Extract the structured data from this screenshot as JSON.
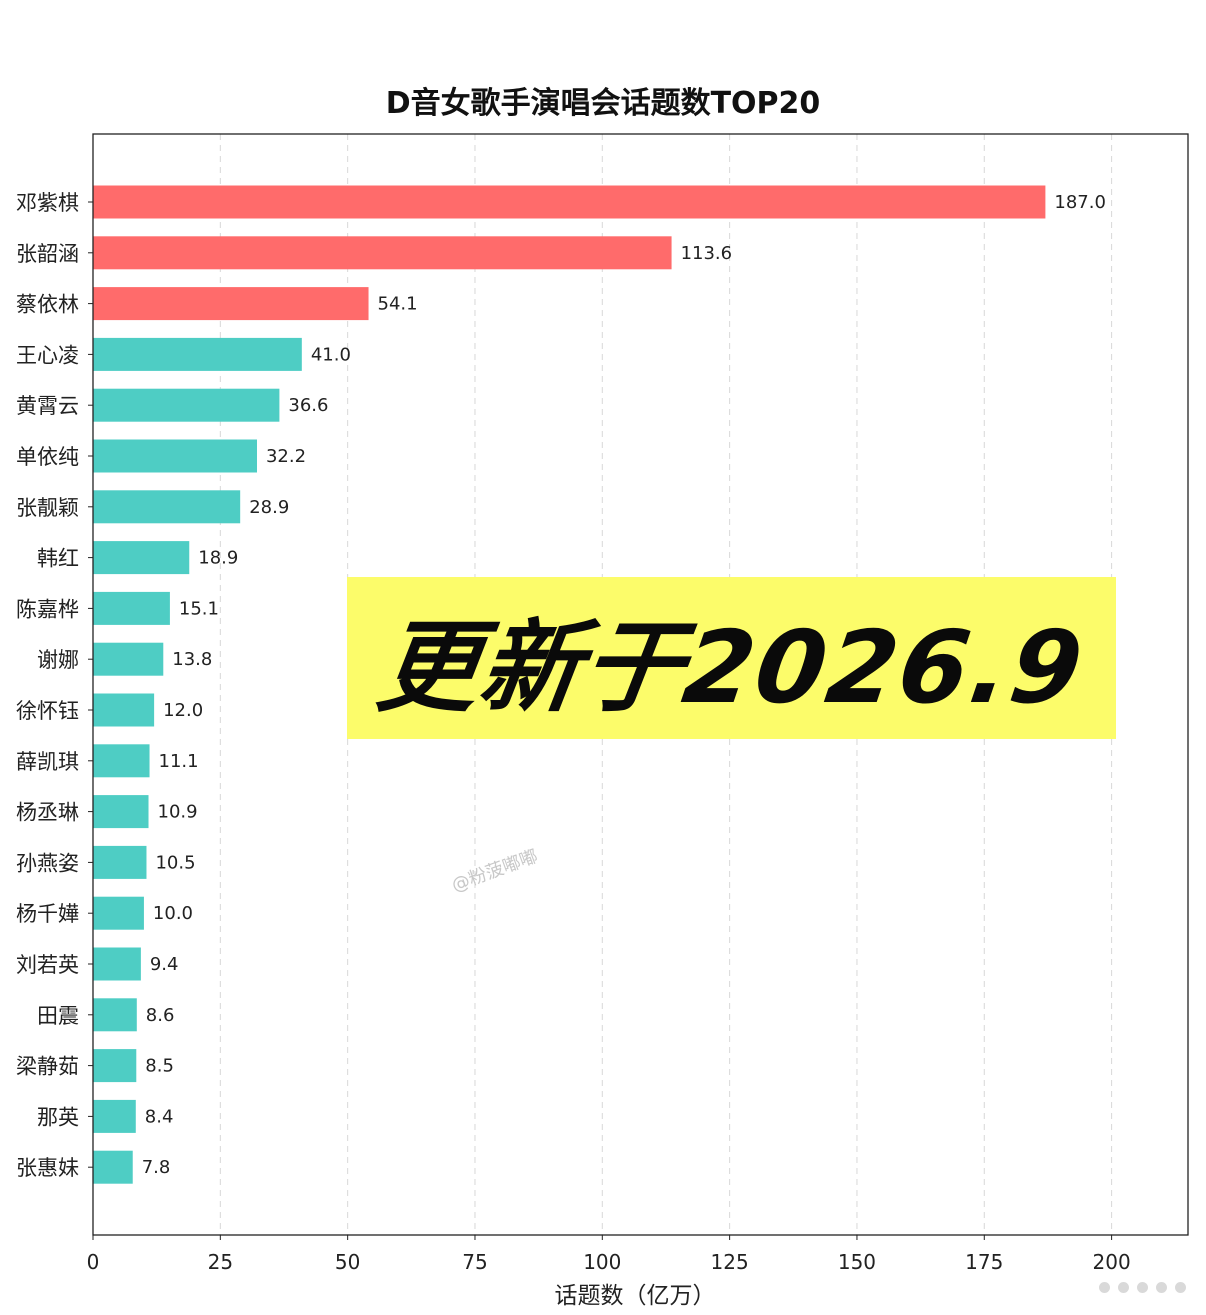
{
  "chart_data": {
    "type": "bar",
    "orientation": "horizontal",
    "title": "D音女歌手演唱会话题数TOP20",
    "xlabel": "话题数（亿万）",
    "ylabel": "",
    "xlim": [
      0,
      215
    ],
    "xticks": [
      0,
      25,
      50,
      75,
      100,
      125,
      150,
      175,
      200
    ],
    "grid": "vertical dashed",
    "categories": [
      "邓紫棋",
      "张韶涵",
      "蔡依林",
      "王心凌",
      "黄霄云",
      "单依纯",
      "张靓颖",
      "韩红",
      "陈嘉桦",
      "谢娜",
      "徐怀钰",
      "薛凯琪",
      "杨丞琳",
      "孙燕姿",
      "杨千嬅",
      "刘若英",
      "田震",
      "梁静茹",
      "那英",
      "张惠妹"
    ],
    "values": [
      187.0,
      113.6,
      54.1,
      41.0,
      36.6,
      32.2,
      28.9,
      18.9,
      15.1,
      13.8,
      12.0,
      11.1,
      10.9,
      10.5,
      10.0,
      9.4,
      8.6,
      8.5,
      8.4,
      7.8
    ],
    "value_labels": [
      "187.0",
      "113.6",
      "54.1",
      "41.0",
      "36.6",
      "32.2",
      "28.9",
      "18.9",
      "15.1",
      "13.8",
      "12.0",
      "11.1",
      "10.9",
      "10.5",
      "10.0",
      "9.4",
      "8.6",
      "8.5",
      "8.4",
      "7.8"
    ],
    "highlight_top_n": 3,
    "colors": {
      "highlight": "#ff6b6b",
      "default": "#4ecdc4"
    }
  },
  "banner": {
    "text": "更新于2026.9",
    "color": "#fcfc6a"
  },
  "watermark": {
    "text": "@粉菠嘟嘟"
  }
}
